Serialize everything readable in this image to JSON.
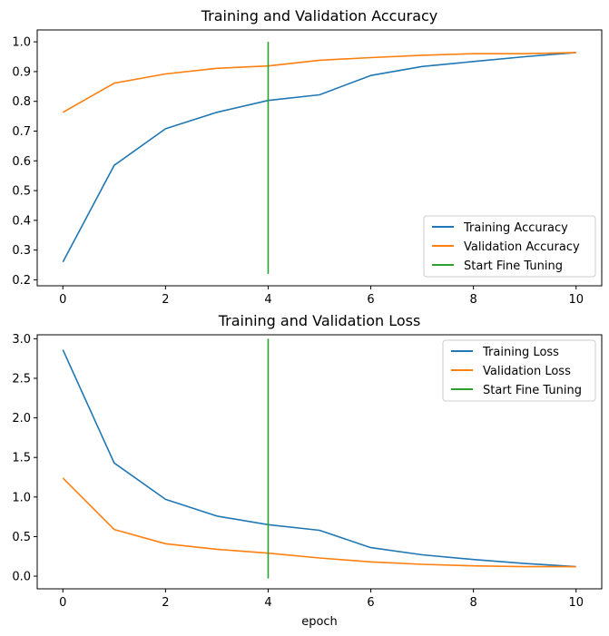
{
  "chart_data": [
    {
      "type": "line",
      "title": "Training and Validation Accuracy",
      "xlabel": "",
      "ylabel": "",
      "xlim": [
        -0.5,
        10.5
      ],
      "ylim": [
        0.18,
        1.04
      ],
      "xticks": [
        0,
        2,
        4,
        6,
        8,
        10
      ],
      "yticks": [
        0.2,
        0.3,
        0.4,
        0.5,
        0.6,
        0.7,
        0.8,
        0.9,
        1.0
      ],
      "ytick_labels": [
        "0.2",
        "0.3",
        "0.4",
        "0.5",
        "0.6",
        "0.7",
        "0.8",
        "0.9",
        "1.0"
      ],
      "grid": false,
      "legend_position": "lower-right",
      "x": [
        0,
        1,
        2,
        3,
        4,
        5,
        6,
        7,
        8,
        9,
        10
      ],
      "series": [
        {
          "name": "Training Accuracy",
          "color": "#1f77b4",
          "values": [
            0.26,
            0.585,
            0.708,
            0.763,
            0.803,
            0.822,
            0.887,
            0.917,
            0.934,
            0.95,
            0.964
          ]
        },
        {
          "name": "Validation Accuracy",
          "color": "#ff7f0e",
          "values": [
            0.763,
            0.861,
            0.892,
            0.911,
            0.919,
            0.938,
            0.947,
            0.955,
            0.96,
            0.96,
            0.964
          ]
        }
      ],
      "vline": {
        "name": "Start Fine Tuning",
        "color": "#2ca02c",
        "x": 4,
        "y_range": [
          0.22,
          1.0
        ]
      }
    },
    {
      "type": "line",
      "title": "Training and Validation Loss",
      "xlabel": "epoch",
      "ylabel": "",
      "xlim": [
        -0.5,
        10.5
      ],
      "ylim": [
        -0.16,
        3.05
      ],
      "xticks": [
        0,
        2,
        4,
        6,
        8,
        10
      ],
      "yticks": [
        0.0,
        0.5,
        1.0,
        1.5,
        2.0,
        2.5,
        3.0
      ],
      "ytick_labels": [
        "0.0",
        "0.5",
        "1.0",
        "1.5",
        "2.0",
        "2.5",
        "3.0"
      ],
      "grid": false,
      "legend_position": "upper-right",
      "x": [
        0,
        1,
        2,
        3,
        4,
        5,
        6,
        7,
        8,
        9,
        10
      ],
      "series": [
        {
          "name": "Training Loss",
          "color": "#1f77b4",
          "values": [
            2.86,
            1.43,
            0.97,
            0.76,
            0.65,
            0.58,
            0.36,
            0.27,
            0.21,
            0.16,
            0.12
          ]
        },
        {
          "name": "Validation Loss",
          "color": "#ff7f0e",
          "values": [
            1.24,
            0.59,
            0.41,
            0.34,
            0.29,
            0.23,
            0.18,
            0.15,
            0.13,
            0.12,
            0.12
          ]
        }
      ],
      "vline": {
        "name": "Start Fine Tuning",
        "color": "#2ca02c",
        "x": 4,
        "y_range": [
          -0.03,
          3.0
        ]
      }
    }
  ]
}
